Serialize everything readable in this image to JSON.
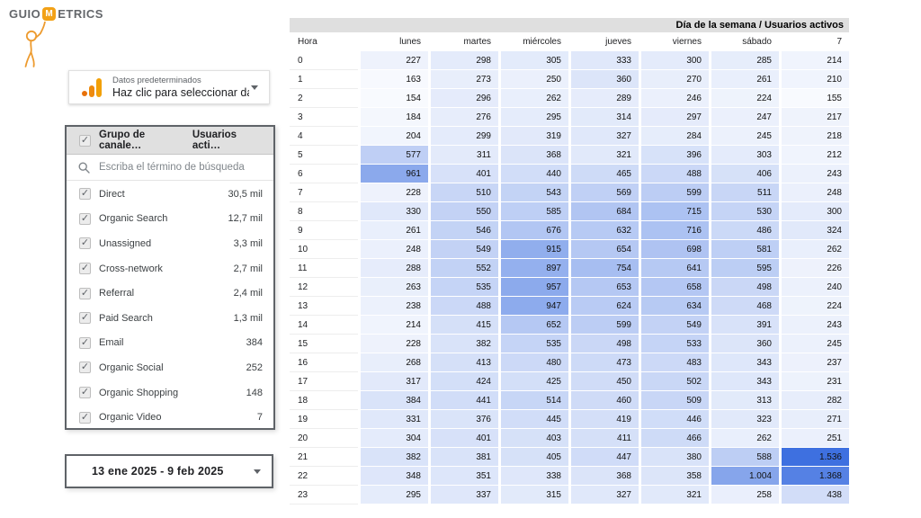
{
  "logo": {
    "prefix": "GUIO",
    "badge": "M",
    "suffix": "ETRICS"
  },
  "colors": {
    "brand_orange": "#F2A116",
    "heat_min": "#FFFFFF",
    "heat_max": "#3E70E0",
    "selection_border": "#5f6368",
    "header_gray": "#e0e0e0"
  },
  "data_source_card": {
    "title": "Datos predeterminados",
    "subtitle": "Haz clic para seleccionar datos",
    "caret": "dropdown"
  },
  "filter_card": {
    "header": {
      "check": "✓",
      "dimension": "Grupo de canale…",
      "metric": "Usuarios acti…"
    },
    "search_placeholder": "Escriba el término de búsqueda",
    "items": [
      {
        "checked": true,
        "label": "Direct",
        "value": "30,5 mil"
      },
      {
        "checked": true,
        "label": "Organic Search",
        "value": "12,7 mil"
      },
      {
        "checked": true,
        "label": "Unassigned",
        "value": "3,3 mil"
      },
      {
        "checked": true,
        "label": "Cross-network",
        "value": "2,7 mil"
      },
      {
        "checked": true,
        "label": "Referral",
        "value": "2,4 mil"
      },
      {
        "checked": true,
        "label": "Paid Search",
        "value": "1,3 mil"
      },
      {
        "checked": true,
        "label": "Email",
        "value": "384"
      },
      {
        "checked": true,
        "label": "Organic Social",
        "value": "252"
      },
      {
        "checked": true,
        "label": "Organic Shopping",
        "value": "148"
      },
      {
        "checked": true,
        "label": "Organic Video",
        "value": "7"
      }
    ]
  },
  "date_card": {
    "label": "13 ene 2025 - 9 feb 2025",
    "caret": "dropdown"
  },
  "chart_data": {
    "type": "heatmap",
    "title": "Día de la semana / Usuarios activos",
    "row_header": "Hora",
    "columns": [
      "lunes",
      "martes",
      "miércoles",
      "jueves",
      "viernes",
      "sábado",
      "7"
    ],
    "rows": [
      0,
      1,
      2,
      3,
      4,
      5,
      6,
      7,
      8,
      9,
      10,
      11,
      12,
      13,
      14,
      15,
      16,
      17,
      18,
      19,
      20,
      21,
      22,
      23
    ],
    "values": [
      [
        227,
        298,
        305,
        333,
        300,
        285,
        214
      ],
      [
        163,
        273,
        250,
        360,
        270,
        261,
        210
      ],
      [
        154,
        296,
        262,
        289,
        246,
        224,
        155
      ],
      [
        184,
        276,
        295,
        314,
        297,
        247,
        217
      ],
      [
        204,
        299,
        319,
        327,
        284,
        245,
        218
      ],
      [
        577,
        311,
        368,
        321,
        396,
        303,
        212
      ],
      [
        961,
        401,
        440,
        465,
        488,
        406,
        243
      ],
      [
        228,
        510,
        543,
        569,
        599,
        511,
        248
      ],
      [
        330,
        550,
        585,
        684,
        715,
        530,
        300
      ],
      [
        261,
        546,
        676,
        632,
        716,
        486,
        324
      ],
      [
        248,
        549,
        915,
        654,
        698,
        581,
        262
      ],
      [
        288,
        552,
        897,
        754,
        641,
        595,
        226
      ],
      [
        263,
        535,
        957,
        653,
        658,
        498,
        240
      ],
      [
        238,
        488,
        947,
        624,
        634,
        468,
        224
      ],
      [
        214,
        415,
        652,
        599,
        549,
        391,
        243
      ],
      [
        228,
        382,
        535,
        498,
        533,
        360,
        245
      ],
      [
        268,
        413,
        480,
        473,
        483,
        343,
        237
      ],
      [
        317,
        424,
        425,
        450,
        502,
        343,
        231
      ],
      [
        384,
        441,
        514,
        460,
        509,
        313,
        282
      ],
      [
        331,
        376,
        445,
        419,
        446,
        323,
        271
      ],
      [
        304,
        401,
        403,
        411,
        466,
        262,
        251
      ],
      [
        382,
        381,
        405,
        447,
        380,
        588,
        1536
      ],
      [
        348,
        351,
        338,
        368,
        358,
        1004,
        1368
      ],
      [
        295,
        337,
        315,
        327,
        321,
        258,
        438
      ]
    ],
    "scale_min": 100,
    "scale_max": 1536,
    "legend": "none",
    "grid": "off"
  }
}
